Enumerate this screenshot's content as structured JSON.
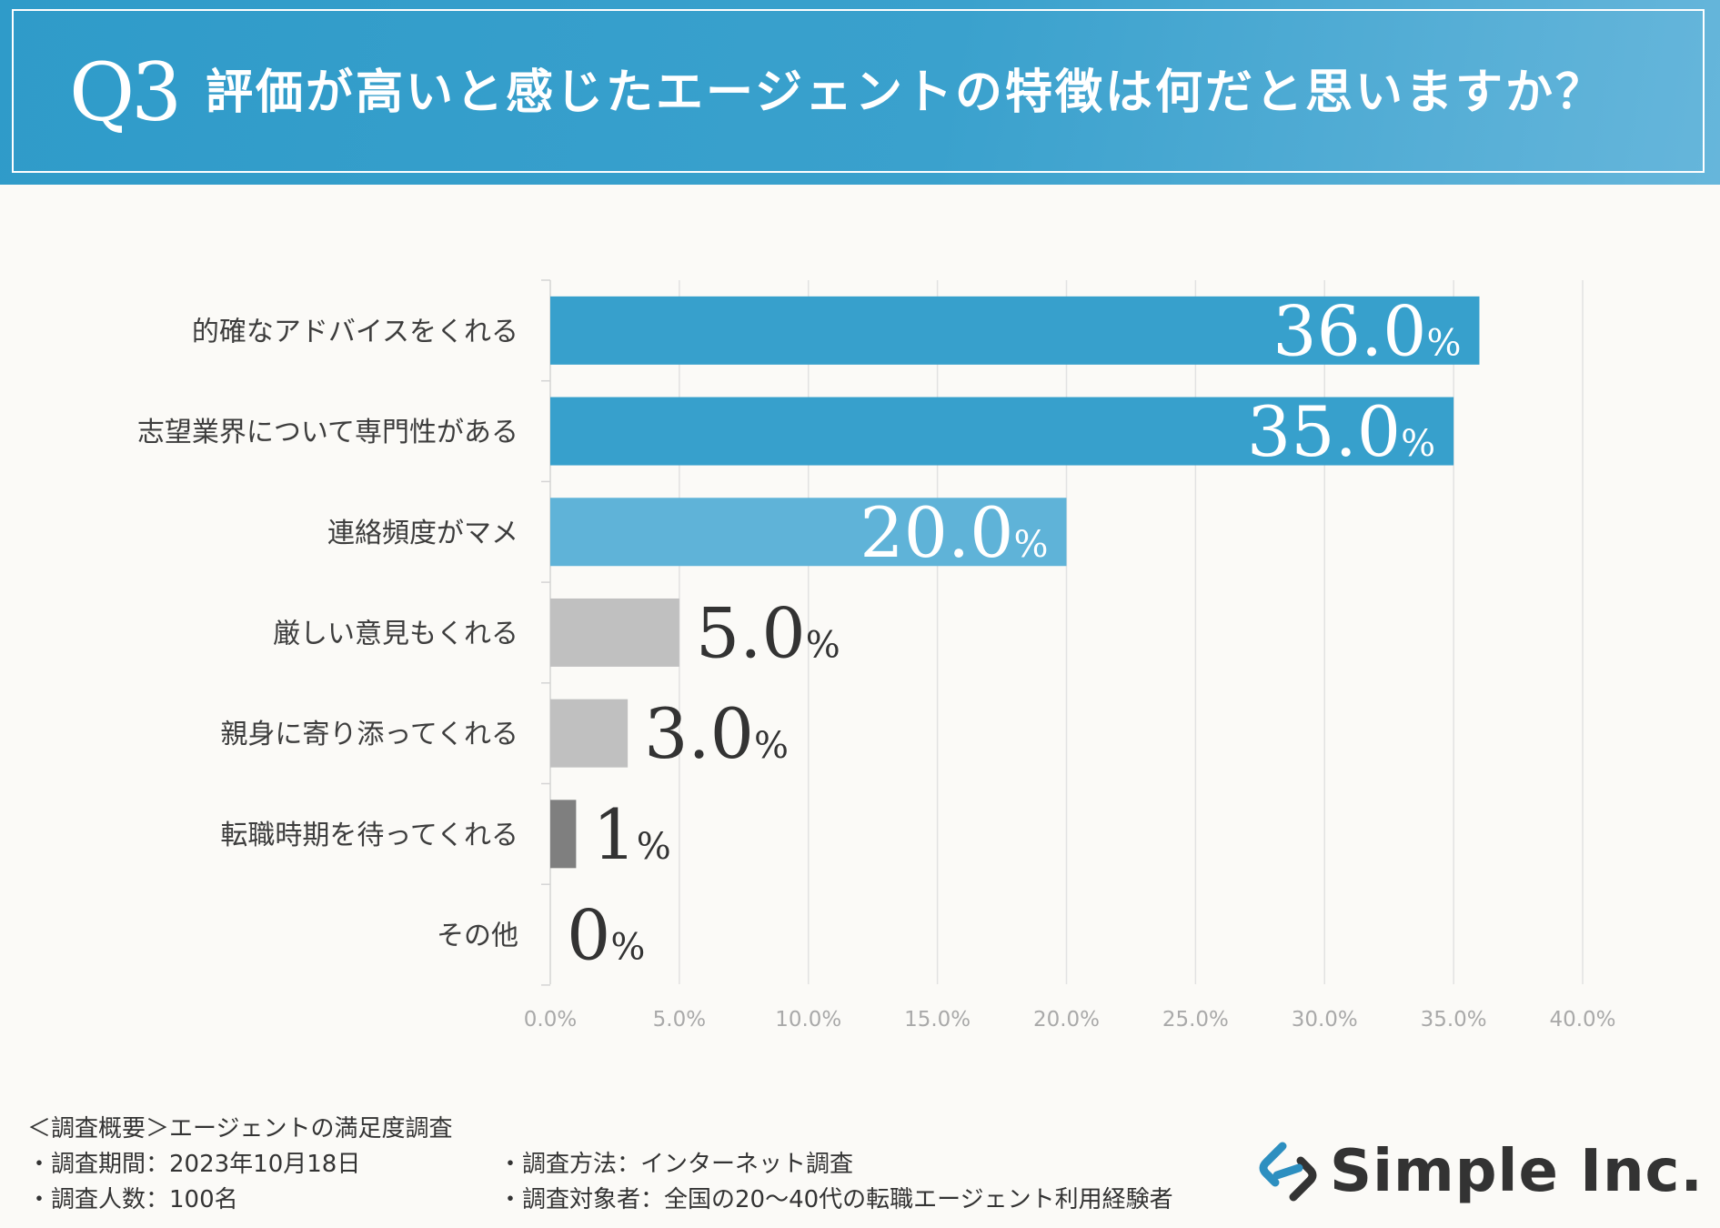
{
  "header": {
    "q_label": "Q3",
    "title": "評価が高いと感じたエージェントの特徴は何だと思いますか？"
  },
  "chart_data": {
    "type": "bar",
    "orientation": "horizontal",
    "title": "評価が高いと感じたエージェントの特徴は何だと思いますか？",
    "categories": [
      "的確なアドバイスをくれる",
      "志望業界について専門性がある",
      "連絡頻度がマメ",
      "厳しい意見もくれる",
      "親身に寄り添ってくれる",
      "転職時期を待ってくれる",
      "その他"
    ],
    "values": [
      36.0,
      35.0,
      20.0,
      5.0,
      3.0,
      1,
      0
    ],
    "value_labels": [
      "36.0",
      "35.0",
      "20.0",
      "5.0",
      "3.0",
      "1",
      "0"
    ],
    "value_suffix": "%",
    "bar_colors": [
      "#37a0cc",
      "#37a0cc",
      "#5fb3d8",
      "#c0c0c0",
      "#c0c0c0",
      "#7f7f7f",
      "#c0c0c0"
    ],
    "label_inside": [
      true,
      true,
      true,
      false,
      false,
      false,
      false
    ],
    "xlim": [
      0,
      40
    ],
    "xticks": [
      0,
      5,
      10,
      15,
      20,
      25,
      30,
      35,
      40
    ],
    "xtick_labels": [
      "0.0%",
      "5.0%",
      "10.0%",
      "15.0%",
      "20.0%",
      "25.0%",
      "30.0%",
      "35.0%",
      "40.0%"
    ],
    "grid": true,
    "xlabel": "",
    "ylabel": ""
  },
  "footer": {
    "overview": "＜調査概要＞エージェントの満足度調査",
    "period": "・調査期間：2023年10月18日",
    "count": "・調査人数：100名",
    "method": "・調査方法：インターネット調査",
    "target": "・調査対象者：全国の20〜40代の転職エージェント利用経験者"
  },
  "logo": {
    "name": "Simple Inc.",
    "icon": "simple-logo-icon",
    "colors": {
      "blue": "#2d8fc0",
      "dark": "#333333"
    }
  },
  "colors": {
    "header_bg": "#2f9bc9",
    "background": "#fbfaf7",
    "gridline": "#e2e2e2",
    "tick_text": "#a9a9a9",
    "outside_label": "#333333",
    "inside_label": "#ffffff"
  }
}
